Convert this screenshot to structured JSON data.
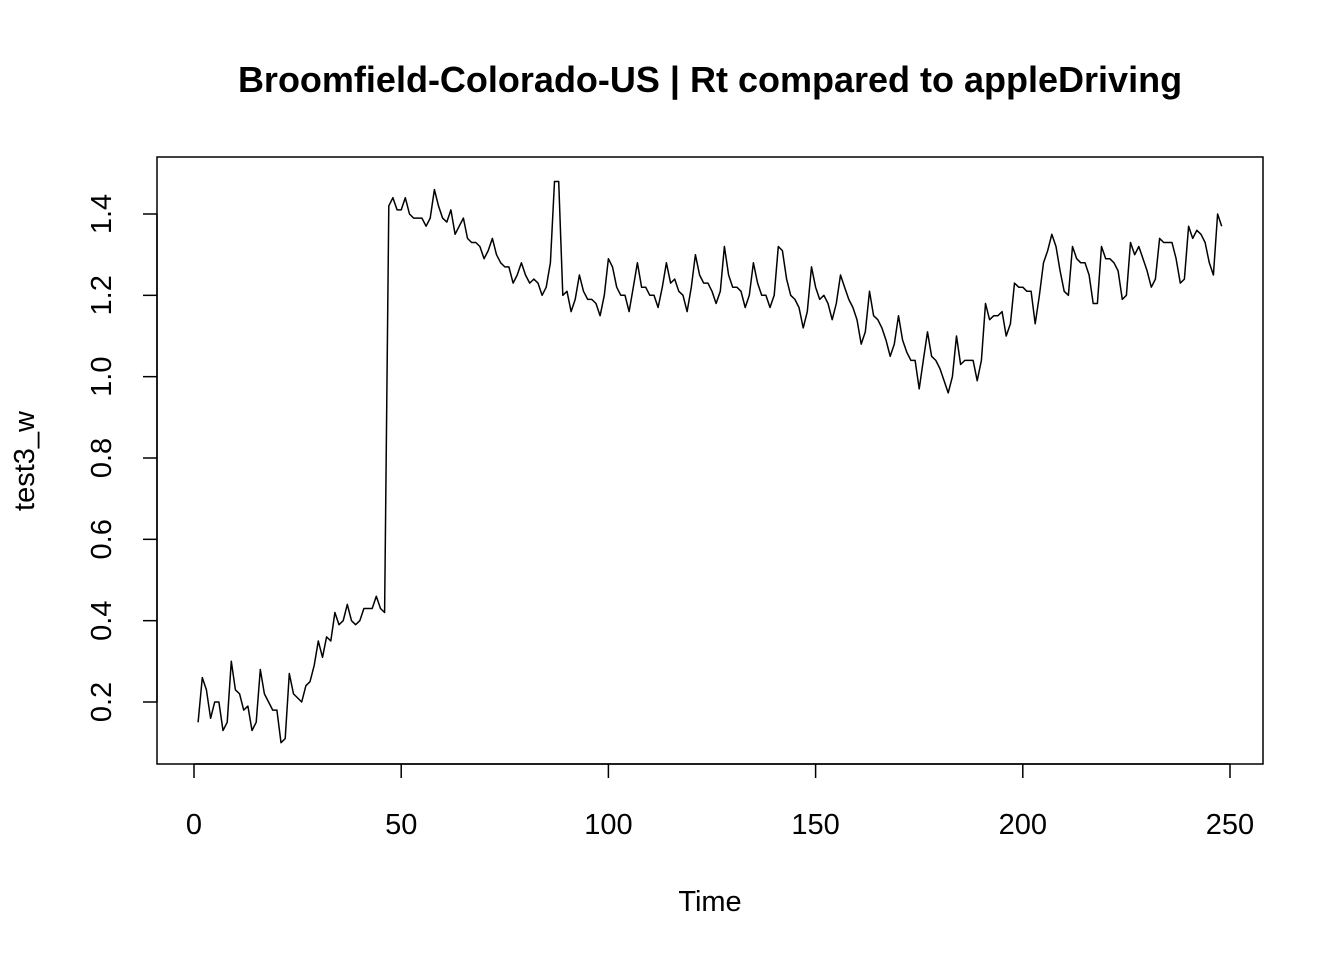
{
  "chart_data": {
    "type": "line",
    "title": "Broomfield-Colorado-US | Rt compared to appleDriving",
    "xlabel": "Time",
    "ylabel": "test3_w",
    "xlim": [
      0,
      250
    ],
    "ylim": [
      0.1,
      1.5
    ],
    "xticks": [
      0,
      50,
      100,
      150,
      200,
      250
    ],
    "yticks": [
      0.2,
      0.4,
      0.6,
      0.8,
      1.0,
      1.2,
      1.4
    ],
    "xtick_labels": [
      "0",
      "50",
      "100",
      "150",
      "200",
      "250"
    ],
    "ytick_labels": [
      "0.2",
      "0.4",
      "0.6",
      "0.8",
      "1.0",
      "1.2",
      "1.4"
    ],
    "grid": false,
    "line_color": "#000000",
    "series": [
      {
        "x": [
          1,
          2,
          3,
          4,
          5,
          6,
          7,
          8,
          9,
          10,
          11,
          12,
          13,
          14,
          15,
          16,
          17,
          18,
          19,
          20,
          21,
          22,
          23,
          24,
          25,
          26,
          27,
          28,
          29,
          30,
          31,
          32,
          33,
          34,
          35,
          36,
          37,
          38,
          39,
          40,
          41,
          42,
          43,
          44,
          45,
          46,
          47,
          48,
          49,
          50,
          51,
          52,
          53,
          54,
          55,
          56,
          57,
          58,
          59,
          60,
          61,
          62,
          63,
          64,
          65,
          66,
          67,
          68,
          69,
          70,
          71,
          72,
          73,
          74,
          75,
          76,
          77,
          78,
          79,
          80,
          81,
          82,
          83,
          84,
          85,
          86,
          87,
          88,
          89,
          90,
          91,
          92,
          93,
          94,
          95,
          96,
          97,
          98,
          99,
          100,
          101,
          102,
          103,
          104,
          105,
          106,
          107,
          108,
          109,
          110,
          111,
          112,
          113,
          114,
          115,
          116,
          117,
          118,
          119,
          120,
          121,
          122,
          123,
          124,
          125,
          126,
          127,
          128,
          129,
          130,
          131,
          132,
          133,
          134,
          135,
          136,
          137,
          138,
          139,
          140,
          141,
          142,
          143,
          144,
          145,
          146,
          147,
          148,
          149,
          150,
          151,
          152,
          153,
          154,
          155,
          156,
          157,
          158,
          159,
          160,
          161,
          162,
          163,
          164,
          165,
          166,
          167,
          168,
          169,
          170,
          171,
          172,
          173,
          174,
          175,
          176,
          177,
          178,
          179,
          180,
          181,
          182,
          183,
          184,
          185,
          186,
          187,
          188,
          189,
          190,
          191,
          192,
          193,
          194,
          195,
          196,
          197,
          198,
          199,
          200,
          201,
          202,
          203,
          204,
          205,
          206,
          207,
          208,
          209,
          210,
          211,
          212,
          213,
          214,
          215,
          216,
          217,
          218,
          219,
          220,
          221,
          222,
          223,
          224,
          225,
          226,
          227,
          228,
          229,
          230,
          231,
          232,
          233,
          234,
          235,
          236,
          237,
          238,
          239,
          240,
          241,
          242,
          243,
          244,
          245,
          246,
          247,
          248
        ],
        "values": [
          0.15,
          0.26,
          0.23,
          0.16,
          0.2,
          0.2,
          0.13,
          0.15,
          0.3,
          0.23,
          0.22,
          0.18,
          0.19,
          0.13,
          0.15,
          0.28,
          0.22,
          0.2,
          0.18,
          0.18,
          0.1,
          0.11,
          0.27,
          0.22,
          0.21,
          0.2,
          0.24,
          0.25,
          0.29,
          0.35,
          0.31,
          0.36,
          0.35,
          0.42,
          0.39,
          0.4,
          0.44,
          0.4,
          0.39,
          0.4,
          0.43,
          0.43,
          0.43,
          0.46,
          0.43,
          0.42,
          1.42,
          1.44,
          1.41,
          1.41,
          1.44,
          1.4,
          1.39,
          1.39,
          1.39,
          1.37,
          1.39,
          1.46,
          1.42,
          1.39,
          1.38,
          1.41,
          1.35,
          1.37,
          1.39,
          1.34,
          1.33,
          1.33,
          1.32,
          1.29,
          1.31,
          1.34,
          1.3,
          1.28,
          1.27,
          1.27,
          1.23,
          1.25,
          1.28,
          1.25,
          1.23,
          1.24,
          1.23,
          1.2,
          1.22,
          1.28,
          1.48,
          1.48,
          1.2,
          1.21,
          1.16,
          1.19,
          1.25,
          1.21,
          1.19,
          1.19,
          1.18,
          1.15,
          1.2,
          1.29,
          1.27,
          1.22,
          1.2,
          1.2,
          1.16,
          1.22,
          1.28,
          1.22,
          1.22,
          1.2,
          1.2,
          1.17,
          1.22,
          1.28,
          1.23,
          1.24,
          1.21,
          1.2,
          1.16,
          1.22,
          1.3,
          1.25,
          1.23,
          1.23,
          1.21,
          1.18,
          1.21,
          1.32,
          1.25,
          1.22,
          1.22,
          1.21,
          1.17,
          1.2,
          1.28,
          1.23,
          1.2,
          1.2,
          1.17,
          1.2,
          1.32,
          1.31,
          1.24,
          1.2,
          1.19,
          1.17,
          1.12,
          1.16,
          1.27,
          1.22,
          1.19,
          1.2,
          1.18,
          1.14,
          1.18,
          1.25,
          1.22,
          1.19,
          1.17,
          1.14,
          1.08,
          1.11,
          1.21,
          1.15,
          1.14,
          1.12,
          1.09,
          1.05,
          1.08,
          1.15,
          1.09,
          1.06,
          1.04,
          1.04,
          0.97,
          1.04,
          1.11,
          1.05,
          1.04,
          1.02,
          0.99,
          0.96,
          1.0,
          1.1,
          1.03,
          1.04,
          1.04,
          1.04,
          0.99,
          1.04,
          1.18,
          1.14,
          1.15,
          1.15,
          1.16,
          1.1,
          1.13,
          1.23,
          1.22,
          1.22,
          1.21,
          1.21,
          1.13,
          1.2,
          1.28,
          1.31,
          1.35,
          1.32,
          1.26,
          1.21,
          1.2,
          1.32,
          1.29,
          1.28,
          1.28,
          1.25,
          1.18,
          1.18,
          1.32,
          1.29,
          1.29,
          1.28,
          1.26,
          1.19,
          1.2,
          1.33,
          1.3,
          1.32,
          1.29,
          1.26,
          1.22,
          1.24,
          1.34,
          1.33,
          1.33,
          1.33,
          1.29,
          1.23,
          1.24,
          1.37,
          1.34,
          1.36,
          1.35,
          1.33,
          1.28,
          1.25,
          1.4,
          1.37
        ]
      }
    ]
  }
}
